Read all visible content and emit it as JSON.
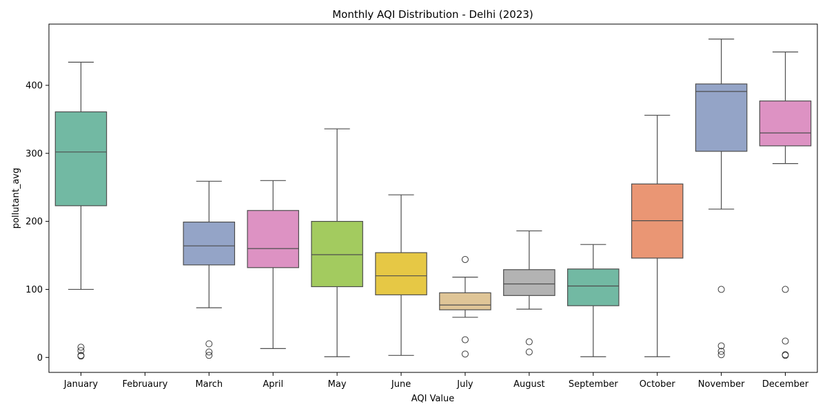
{
  "chart_data": {
    "type": "box",
    "title": "Monthly AQI Distribution - Delhi (2023)",
    "xlabel": "AQI Value",
    "ylabel": "pollutant_avg",
    "ylim": [
      -22,
      490
    ],
    "yticks": [
      0,
      100,
      200,
      300,
      400
    ],
    "grid": false,
    "legend": "none",
    "categories": [
      "January",
      "Februaury",
      "March",
      "April",
      "May",
      "June",
      "July",
      "August",
      "September",
      "October",
      "November",
      "December"
    ],
    "boxes": [
      {
        "month": "January",
        "color": "#72b9a3",
        "whisker_low": 100,
        "q1": 223,
        "median": 302,
        "q3": 361,
        "whisker_high": 434,
        "outliers": [
          15,
          10,
          3,
          2
        ]
      },
      {
        "month": "Februaury",
        "color": "#ffffff",
        "whisker_low": null,
        "q1": null,
        "median": null,
        "q3": null,
        "whisker_high": null,
        "outliers": []
      },
      {
        "month": "March",
        "color": "#94a4c7",
        "whisker_low": 73,
        "q1": 136,
        "median": 164,
        "q3": 199,
        "whisker_high": 259,
        "outliers": [
          20,
          8,
          3
        ]
      },
      {
        "month": "April",
        "color": "#dd92c3",
        "whisker_low": 13,
        "q1": 132,
        "median": 160,
        "q3": 216,
        "whisker_high": 260,
        "outliers": []
      },
      {
        "month": "May",
        "color": "#a3cb5f",
        "whisker_low": 1,
        "q1": 104,
        "median": 151,
        "q3": 200,
        "whisker_high": 336,
        "outliers": []
      },
      {
        "month": "June",
        "color": "#e6c845",
        "whisker_low": 3,
        "q1": 92,
        "median": 120,
        "q3": 154,
        "whisker_high": 239,
        "outliers": []
      },
      {
        "month": "July",
        "color": "#dfc597",
        "whisker_low": 59,
        "q1": 70,
        "median": 77,
        "q3": 95,
        "whisker_high": 118,
        "outliers": [
          144,
          26,
          5
        ]
      },
      {
        "month": "August",
        "color": "#b3b3b3",
        "whisker_low": 71,
        "q1": 91,
        "median": 108,
        "q3": 129,
        "whisker_high": 186,
        "outliers": [
          23,
          8
        ]
      },
      {
        "month": "September",
        "color": "#72b9a3",
        "whisker_low": 1,
        "q1": 76,
        "median": 105,
        "q3": 130,
        "whisker_high": 166,
        "outliers": []
      },
      {
        "month": "October",
        "color": "#ea9674",
        "whisker_low": 1,
        "q1": 146,
        "median": 201,
        "q3": 255,
        "whisker_high": 356,
        "outliers": []
      },
      {
        "month": "November",
        "color": "#94a4c7",
        "whisker_low": 218,
        "q1": 303,
        "median": 391,
        "q3": 402,
        "whisker_high": 468,
        "outliers": [
          100,
          17,
          9,
          4
        ]
      },
      {
        "month": "December",
        "color": "#dd92c3",
        "whisker_low": 285,
        "q1": 311,
        "median": 330,
        "q3": 377,
        "whisker_high": 449,
        "outliers": [
          100,
          24,
          4,
          3
        ]
      }
    ]
  }
}
